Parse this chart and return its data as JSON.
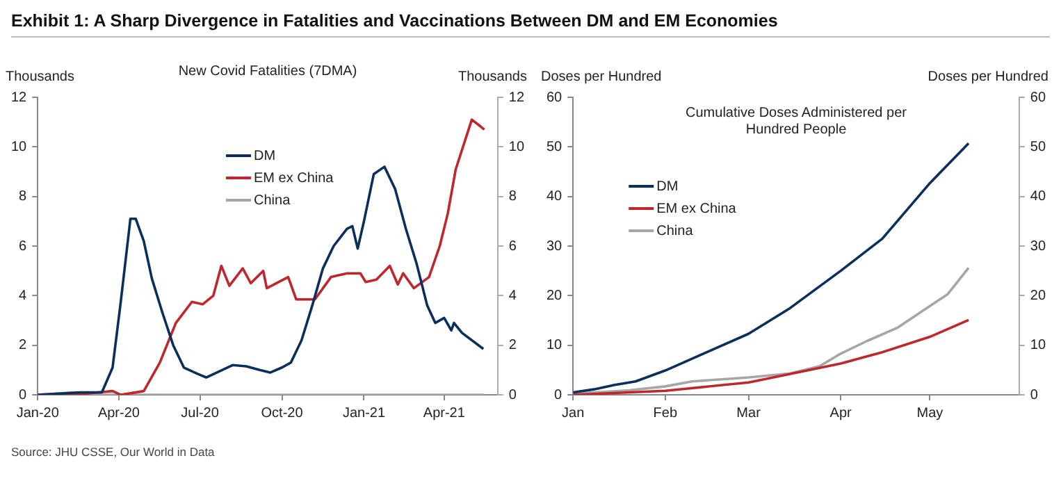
{
  "chart_data": [
    {
      "type": "line",
      "title": "Exhibit 1: A Sharp Divergence in Fatalities and Vaccinations Between DM and EM Economies",
      "subtitle": "New Covid Fatalities (7DMA)",
      "ylabel": "Thousands",
      "y2label": "Thousands",
      "legend": "top",
      "grid": false,
      "marker": "none",
      "line_style": "solid",
      "xlim": [
        "2020-01-01",
        "2021-05-31"
      ],
      "xticks": [
        {
          "value": "2020-01-01",
          "label": "Jan-20"
        },
        {
          "value": "2020-04-01",
          "label": "Apr-20"
        },
        {
          "value": "2020-07-01",
          "label": "Jul-20"
        },
        {
          "value": "2020-10-01",
          "label": "Oct-20"
        },
        {
          "value": "2021-01-01",
          "label": "Jan-21"
        },
        {
          "value": "2021-04-01",
          "label": "Apr-21"
        }
      ],
      "ylim": [
        0,
        12
      ],
      "yticks": [
        0,
        2,
        4,
        6,
        8,
        10,
        12
      ],
      "y2lim": [
        0,
        12
      ],
      "y2ticks": [
        0,
        2,
        4,
        6,
        8,
        10,
        12
      ],
      "series": [
        {
          "name": "DM",
          "color": "#0b2f5b",
          "x": [
            "2020-01-01",
            "2020-02-18",
            "2020-03-13",
            "2020-03-25",
            "2020-04-03",
            "2020-04-14",
            "2020-04-20",
            "2020-04-29",
            "2020-05-08",
            "2020-05-20",
            "2020-06-01",
            "2020-06-13",
            "2020-06-28",
            "2020-07-08",
            "2020-07-23",
            "2020-08-07",
            "2020-08-22",
            "2020-09-06",
            "2020-09-18",
            "2020-10-01",
            "2020-10-11",
            "2020-10-23",
            "2020-11-04",
            "2020-11-16",
            "2020-11-28",
            "2020-12-13",
            "2020-12-19",
            "2020-12-25",
            "2021-01-01",
            "2021-01-12",
            "2021-01-24",
            "2021-02-05",
            "2021-02-17",
            "2021-03-01",
            "2021-03-13",
            "2021-03-22",
            "2021-04-01",
            "2021-04-09",
            "2021-04-12",
            "2021-04-21",
            "2021-05-15"
          ],
          "values": [
            0,
            0.1,
            0.1,
            1.1,
            3.7,
            7.1,
            7.1,
            6.2,
            4.7,
            3.3,
            2.0,
            1.1,
            0.85,
            0.7,
            0.95,
            1.2,
            1.15,
            1.0,
            0.9,
            1.1,
            1.3,
            2.2,
            3.6,
            5.1,
            6.0,
            6.7,
            6.8,
            5.9,
            7.0,
            8.9,
            9.2,
            8.3,
            6.7,
            5.3,
            3.6,
            2.9,
            3.1,
            2.6,
            2.9,
            2.5,
            1.85
          ]
        },
        {
          "name": "EM ex China",
          "color": "#c0272d",
          "x": [
            "2020-01-01",
            "2020-02-24",
            "2020-03-25",
            "2020-04-03",
            "2020-04-29",
            "2020-05-17",
            "2020-06-04",
            "2020-06-22",
            "2020-07-04",
            "2020-07-16",
            "2020-07-25",
            "2020-08-03",
            "2020-08-18",
            "2020-08-27",
            "2020-09-10",
            "2020-09-14",
            "2020-10-08",
            "2020-10-17",
            "2020-11-07",
            "2020-11-25",
            "2020-12-13",
            "2020-12-28",
            "2021-01-03",
            "2021-01-15",
            "2021-01-30",
            "2021-02-08",
            "2021-02-14",
            "2021-02-26",
            "2021-03-15",
            "2021-03-27",
            "2021-04-05",
            "2021-04-14",
            "2021-04-23",
            "2021-05-02",
            "2021-05-11",
            "2021-05-16"
          ],
          "values": [
            0,
            0.05,
            0.15,
            0,
            0.15,
            1.3,
            2.9,
            3.75,
            3.65,
            4.0,
            5.2,
            4.4,
            5.1,
            4.5,
            5.0,
            4.3,
            4.75,
            3.85,
            3.85,
            4.75,
            4.9,
            4.9,
            4.55,
            4.65,
            5.2,
            4.45,
            4.9,
            4.3,
            4.75,
            6.0,
            7.3,
            9.1,
            10.1,
            11.1,
            10.85,
            10.7
          ]
        },
        {
          "name": "China",
          "color": "#a6a6a6",
          "x": [
            "2020-01-01",
            "2020-02-11",
            "2020-02-24",
            "2020-03-13",
            "2020-04-14",
            "2020-04-17",
            "2020-04-20",
            "2021-05-16"
          ],
          "values": [
            0,
            0.1,
            0.08,
            0,
            0,
            0.1,
            0,
            0
          ]
        }
      ]
    },
    {
      "type": "line",
      "subtitle": "Cumulative Doses Administered per Hundred People",
      "ylabel": "Doses per Hundred",
      "y2label": "Doses per Hundred",
      "legend": "top left",
      "grid": false,
      "marker": "none",
      "line_style": "solid",
      "xlim": [
        "--01-01",
        "--05-31"
      ],
      "xticks": [
        {
          "value": "--01-01",
          "label": "Jan"
        },
        {
          "value": "--02-01",
          "label": "Feb"
        },
        {
          "value": "--03-01",
          "label": "Mar"
        },
        {
          "value": "--04-01",
          "label": "Apr"
        },
        {
          "value": "--05-01",
          "label": "May"
        }
      ],
      "ylim": [
        0,
        60
      ],
      "yticks": [
        0,
        10,
        20,
        30,
        40,
        50,
        60
      ],
      "y2lim": [
        0,
        60
      ],
      "y2ticks": [
        0,
        10,
        20,
        30,
        40,
        50,
        60
      ],
      "series": [
        {
          "name": "DM",
          "color": "#0b2f5b",
          "x": [
            "--01-01",
            "--01-08",
            "--01-15",
            "--01-22",
            "--02-01",
            "--02-15",
            "--03-01",
            "--03-15",
            "--04-01",
            "--04-15",
            "--05-01",
            "--05-14"
          ],
          "values": [
            0.5,
            1.1,
            2.0,
            2.7,
            4.9,
            8.6,
            12.3,
            17.5,
            25,
            31.5,
            42.7,
            50.7
          ]
        },
        {
          "name": "EM ex China",
          "color": "#c0272d",
          "x": [
            "--01-01",
            "--02-01",
            "--03-01",
            "--03-15",
            "--04-01",
            "--04-15",
            "--05-01",
            "--05-14"
          ],
          "values": [
            0,
            0.8,
            2.5,
            4.2,
            6.3,
            8.6,
            11.7,
            15.1
          ]
        },
        {
          "name": "China",
          "color": "#a6a6a6",
          "x": [
            "--01-01",
            "--01-20",
            "--02-01",
            "--02-10",
            "--03-01",
            "--03-15",
            "--03-25",
            "--04-01",
            "--04-10",
            "--04-20",
            "--05-01",
            "--05-07",
            "--05-14"
          ],
          "values": [
            0.2,
            0.9,
            1.7,
            2.7,
            3.5,
            4.3,
            5.8,
            8.3,
            10.9,
            13.5,
            17.9,
            20.3,
            25.6
          ]
        }
      ],
      "annotations": [
        "Source: JHU CSSE, Our World in Data"
      ]
    }
  ]
}
